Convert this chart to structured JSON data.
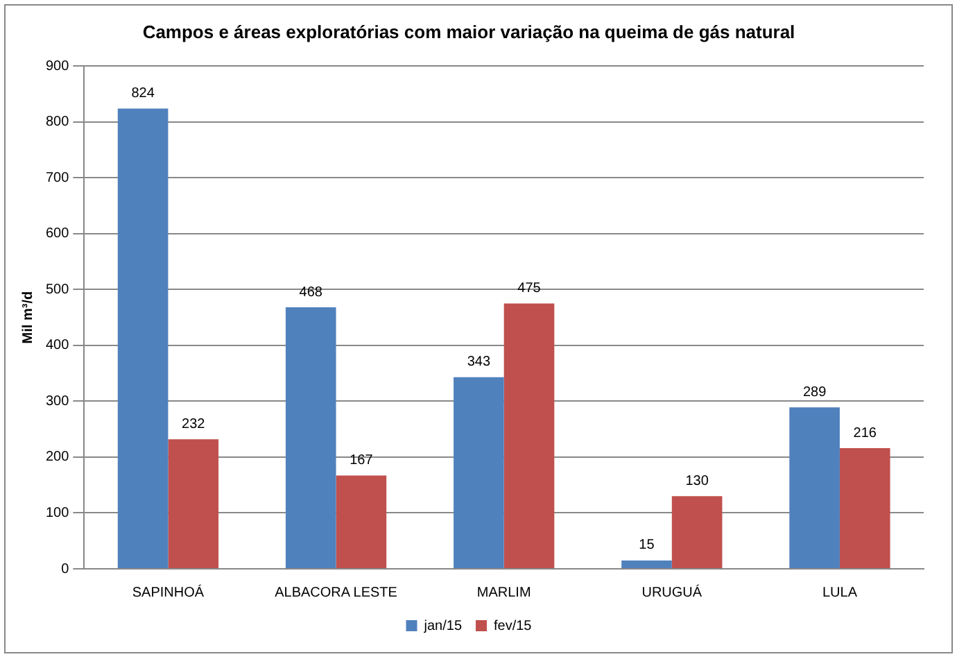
{
  "chart_data": {
    "type": "bar",
    "title": "Campos e áreas exploratórias com maior variação na queima de gás natural",
    "ylabel": "Mil m³/d",
    "categories": [
      "SAPINHOÁ",
      "ALBACORA LESTE",
      "MARLIM",
      "URUGUÁ",
      "LULA"
    ],
    "series": [
      {
        "name": "jan/15",
        "color": "#4f81bd",
        "values": [
          824,
          468,
          343,
          15,
          289
        ]
      },
      {
        "name": "fev/15",
        "color": "#c0504d",
        "values": [
          232,
          167,
          475,
          130,
          216
        ]
      }
    ],
    "ylim": [
      0,
      900
    ],
    "yticks": [
      0,
      100,
      200,
      300,
      400,
      500,
      600,
      700,
      800,
      900
    ],
    "grid": "y",
    "legend": "bottom",
    "data_labels": true
  }
}
